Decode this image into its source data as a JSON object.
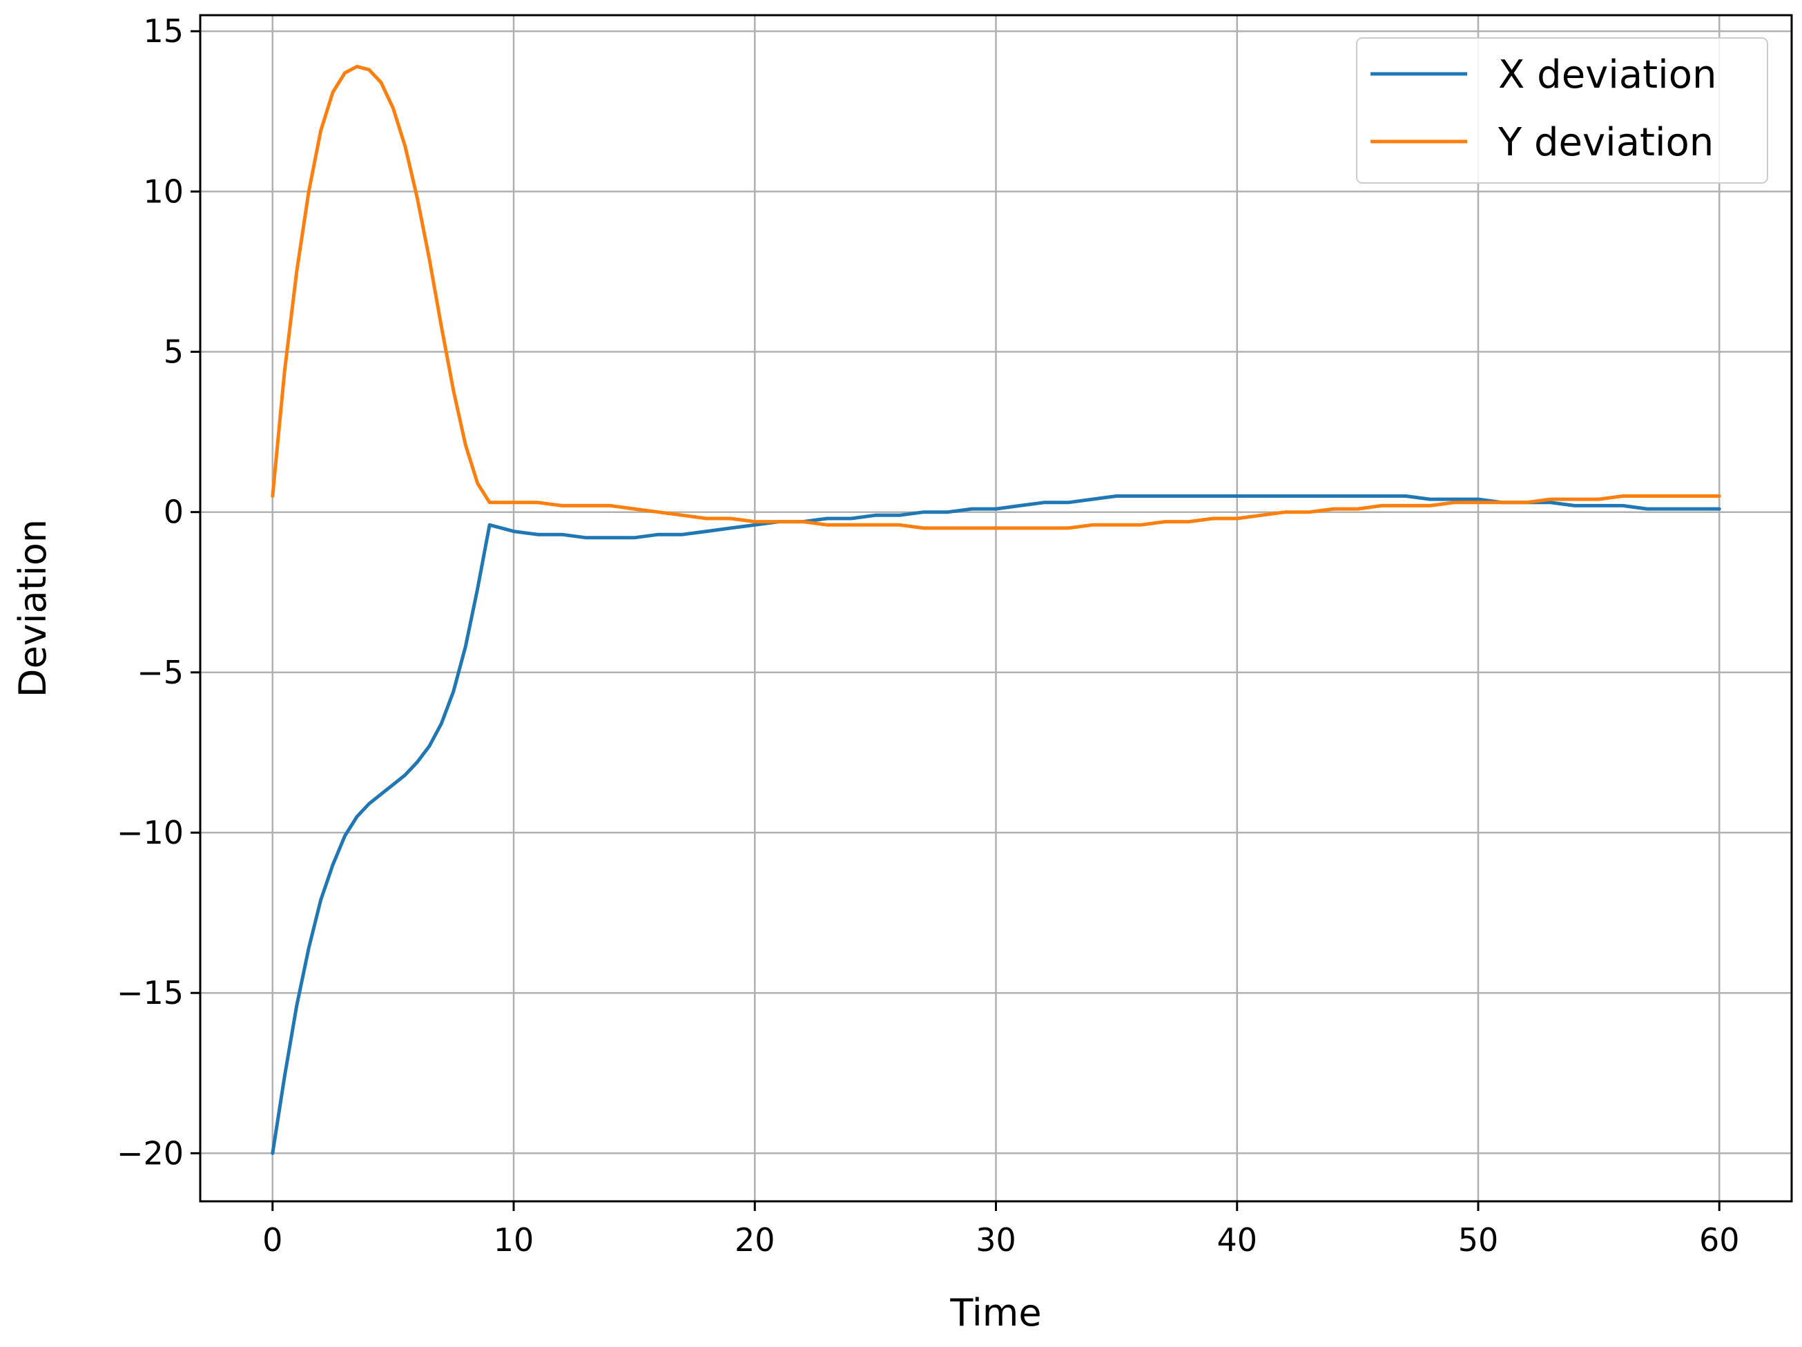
{
  "chart_data": {
    "type": "line",
    "title": "",
    "xlabel": "Time",
    "ylabel": "Deviation",
    "xlim": [
      -3,
      63
    ],
    "ylim": [
      -21.5,
      15.5
    ],
    "xticks": [
      0,
      10,
      20,
      30,
      40,
      50,
      60
    ],
    "yticks": [
      -20,
      -15,
      -10,
      -5,
      0,
      5,
      10,
      15
    ],
    "xtick_labels": [
      "0",
      "10",
      "20",
      "30",
      "40",
      "50",
      "60"
    ],
    "ytick_labels": [
      "−20",
      "−15",
      "−10",
      "−5",
      "0",
      "5",
      "10",
      "15"
    ],
    "grid": true,
    "legend_position": "top-right",
    "series": [
      {
        "name": "X deviation",
        "color": "#1f77b4",
        "x": [
          0,
          0.5,
          1,
          1.5,
          2,
          2.5,
          3,
          3.5,
          4,
          4.5,
          5,
          5.5,
          6,
          6.5,
          7,
          7.5,
          8,
          8.5,
          9,
          9.5,
          10,
          11,
          12,
          13,
          14,
          15,
          16,
          17,
          18,
          19,
          20,
          21,
          22,
          23,
          24,
          25,
          26,
          27,
          28,
          29,
          30,
          31,
          32,
          33,
          34,
          35,
          36,
          37,
          38,
          39,
          40,
          41,
          42,
          43,
          44,
          45,
          46,
          47,
          48,
          49,
          50,
          51,
          52,
          53,
          54,
          55,
          56,
          57,
          58,
          59,
          60
        ],
        "values": [
          -20,
          -17.6,
          -15.4,
          -13.6,
          -12.1,
          -11,
          -10.1,
          -9.5,
          -9.1,
          -8.8,
          -8.5,
          -8.2,
          -7.8,
          -7.3,
          -6.6,
          -5.6,
          -4.2,
          -2.4,
          -0.4,
          -0.5,
          -0.6,
          -0.7,
          -0.7,
          -0.8,
          -0.8,
          -0.8,
          -0.7,
          -0.7,
          -0.6,
          -0.5,
          -0.4,
          -0.3,
          -0.3,
          -0.2,
          -0.2,
          -0.1,
          -0.1,
          0,
          0,
          0.1,
          0.1,
          0.2,
          0.3,
          0.3,
          0.4,
          0.5,
          0.5,
          0.5,
          0.5,
          0.5,
          0.5,
          0.5,
          0.5,
          0.5,
          0.5,
          0.5,
          0.5,
          0.5,
          0.4,
          0.4,
          0.4,
          0.3,
          0.3,
          0.3,
          0.2,
          0.2,
          0.2,
          0.1,
          0.1,
          0.1,
          0.1
        ]
      },
      {
        "name": "Y deviation",
        "color": "#ff7f0e",
        "x": [
          0,
          0.5,
          1,
          1.5,
          2,
          2.5,
          3,
          3.5,
          4,
          4.5,
          5,
          5.5,
          6,
          6.5,
          7,
          7.5,
          8,
          8.5,
          9,
          9.5,
          10,
          11,
          12,
          13,
          14,
          15,
          16,
          17,
          18,
          19,
          20,
          21,
          22,
          23,
          24,
          25,
          26,
          27,
          28,
          29,
          30,
          31,
          32,
          33,
          34,
          35,
          36,
          37,
          38,
          39,
          40,
          41,
          42,
          43,
          44,
          45,
          46,
          47,
          48,
          49,
          50,
          51,
          52,
          53,
          54,
          55,
          56,
          57,
          58,
          59,
          60
        ],
        "values": [
          0.5,
          4.4,
          7.5,
          10,
          11.9,
          13.1,
          13.7,
          13.9,
          13.8,
          13.4,
          12.6,
          11.4,
          9.8,
          7.9,
          5.8,
          3.8,
          2.1,
          0.9,
          0.3,
          0.3,
          0.3,
          0.3,
          0.2,
          0.2,
          0.2,
          0.1,
          0,
          -0.1,
          -0.2,
          -0.2,
          -0.3,
          -0.3,
          -0.3,
          -0.4,
          -0.4,
          -0.4,
          -0.4,
          -0.5,
          -0.5,
          -0.5,
          -0.5,
          -0.5,
          -0.5,
          -0.5,
          -0.4,
          -0.4,
          -0.4,
          -0.3,
          -0.3,
          -0.2,
          -0.2,
          -0.1,
          0,
          0,
          0.1,
          0.1,
          0.2,
          0.2,
          0.2,
          0.3,
          0.3,
          0.3,
          0.3,
          0.4,
          0.4,
          0.4,
          0.5,
          0.5,
          0.5,
          0.5,
          0.5
        ]
      }
    ]
  }
}
